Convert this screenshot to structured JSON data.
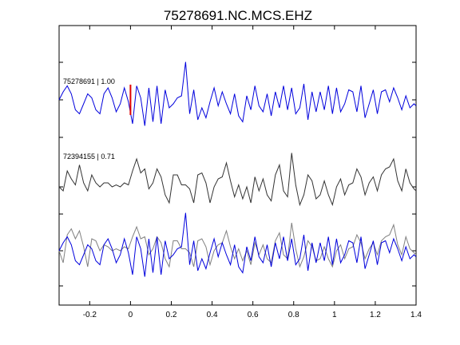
{
  "chart_data": {
    "type": "line",
    "title": "75278691.NC.MCS.EHZ",
    "xlabel": "",
    "ylabel": "",
    "xlim": [
      -0.35,
      1.4
    ],
    "xticks": [
      -0.2,
      0,
      0.2,
      0.4,
      0.6,
      0.8,
      1,
      1.2,
      1.4
    ],
    "xtick_labels": [
      "-0.2",
      "0",
      "0.2",
      "0.4",
      "0.6",
      "0.8",
      "1",
      "1.2",
      "1.4"
    ],
    "pick_marker": {
      "x": 0,
      "color": "#e00000"
    },
    "colors": {
      "primary": "#0000dd",
      "secondary": "#333333",
      "overlay": "#808080",
      "pick": "#e00000"
    },
    "traces": [
      {
        "label": "75278691 | 1.00",
        "color": "#0000dd",
        "x": [
          -0.35,
          -0.33,
          -0.31,
          -0.29,
          -0.27,
          -0.25,
          -0.23,
          -0.21,
          -0.19,
          -0.17,
          -0.15,
          -0.13,
          -0.11,
          -0.09,
          -0.07,
          -0.05,
          -0.03,
          -0.01,
          0.01,
          0.03,
          0.05,
          0.07,
          0.09,
          0.11,
          0.13,
          0.15,
          0.17,
          0.19,
          0.21,
          0.23,
          0.25,
          0.27,
          0.29,
          0.31,
          0.33,
          0.35,
          0.37,
          0.39,
          0.41,
          0.43,
          0.45,
          0.47,
          0.49,
          0.51,
          0.53,
          0.55,
          0.57,
          0.59,
          0.61,
          0.63,
          0.65,
          0.67,
          0.69,
          0.71,
          0.73,
          0.75,
          0.77,
          0.79,
          0.81,
          0.83,
          0.85,
          0.87,
          0.89,
          0.91,
          0.93,
          0.95,
          0.97,
          0.99,
          1.01,
          1.03,
          1.05,
          1.07,
          1.09,
          1.11,
          1.13,
          1.15,
          1.17,
          1.19,
          1.21,
          1.23,
          1.25,
          1.27,
          1.29,
          1.31,
          1.33,
          1.35,
          1.37,
          1.39,
          1.4
        ],
        "y": [
          0,
          0.2,
          0.35,
          0.15,
          -0.25,
          -0.35,
          -0.1,
          0.15,
          0.05,
          -0.25,
          -0.35,
          0.15,
          0.3,
          0.05,
          -0.3,
          -0.1,
          0.3,
          -0.05,
          -0.6,
          0.35,
          0.05,
          -0.65,
          0.3,
          -0.55,
          0.35,
          -0.6,
          0.25,
          -0.2,
          -0.1,
          0.05,
          0.1,
          0.95,
          -0.35,
          0.25,
          -0.5,
          -0.2,
          -0.45,
          -0.05,
          0.3,
          -0.15,
          0.2,
          -0.1,
          -0.35,
          0.15,
          -0.4,
          -0.55,
          0.1,
          -0.25,
          0.35,
          -0.15,
          -0.3,
          0.15,
          -0.4,
          0.2,
          -0.2,
          0.35,
          -0.25,
          0.3,
          -0.35,
          -0.2,
          0.4,
          -0.5,
          0.2,
          -0.3,
          0.2,
          -0.25,
          0.35,
          -0.35,
          0.3,
          -0.3,
          -0.1,
          0.25,
          0.2,
          -0.3,
          0.35,
          -0.45,
          -0.1,
          0.25,
          -0.35,
          0.2,
          0.25,
          -0.05,
          0.3,
          0.05,
          -0.25,
          0.1,
          -0.2,
          -0.1,
          -0.15
        ]
      },
      {
        "label": "72394155 | 0.71",
        "color": "#333333",
        "x": [
          -0.35,
          -0.33,
          -0.31,
          -0.29,
          -0.27,
          -0.25,
          -0.23,
          -0.21,
          -0.19,
          -0.17,
          -0.15,
          -0.13,
          -0.11,
          -0.09,
          -0.07,
          -0.05,
          -0.03,
          -0.01,
          0.01,
          0.03,
          0.05,
          0.07,
          0.09,
          0.11,
          0.13,
          0.15,
          0.17,
          0.19,
          0.21,
          0.23,
          0.25,
          0.27,
          0.29,
          0.31,
          0.33,
          0.35,
          0.37,
          0.39,
          0.41,
          0.43,
          0.45,
          0.47,
          0.49,
          0.51,
          0.53,
          0.55,
          0.57,
          0.59,
          0.61,
          0.63,
          0.65,
          0.67,
          0.69,
          0.71,
          0.73,
          0.75,
          0.77,
          0.79,
          0.81,
          0.83,
          0.85,
          0.87,
          0.89,
          0.91,
          0.93,
          0.95,
          0.97,
          0.99,
          1.01,
          1.03,
          1.05,
          1.07,
          1.09,
          1.11,
          1.13,
          1.15,
          1.17,
          1.19,
          1.21,
          1.23,
          1.25,
          1.27,
          1.29,
          1.31,
          1.33,
          1.35,
          1.37,
          1.39,
          1.4
        ],
        "y": [
          0,
          -0.1,
          0.4,
          0.2,
          0.05,
          0.55,
          0.1,
          -0.1,
          0.3,
          0.1,
          0.0,
          0.1,
          0.1,
          0.0,
          0.05,
          0.0,
          0.1,
          0.05,
          0.4,
          0.7,
          0.35,
          0.45,
          -0.05,
          0.1,
          0.45,
          0.25,
          -0.2,
          -0.4,
          0.3,
          0.3,
          0.05,
          0.05,
          -0.05,
          -0.4,
          0.3,
          0.35,
          0.1,
          -0.4,
          0.0,
          0.2,
          0.25,
          0.6,
          0.15,
          -0.25,
          0.05,
          -0.3,
          0.0,
          -0.4,
          0.25,
          -0.1,
          0.2,
          -0.2,
          -0.35,
          0.3,
          0.55,
          -0.1,
          -0.25,
          0.85,
          0.05,
          -0.45,
          -0.2,
          0.3,
          0.15,
          -0.3,
          -0.2,
          0.15,
          -0.2,
          -0.45,
          0.0,
          0.2,
          -0.2,
          0.05,
          0.1,
          0.45,
          0.25,
          -0.2,
          0.1,
          0.25,
          -0.1,
          0.3,
          0.45,
          0.5,
          0.7,
          0.15,
          -0.1,
          0.45,
          0.1,
          -0.05,
          -0.1
        ]
      },
      {
        "label": "",
        "color": "#808080",
        "x": [
          -0.35,
          -0.33,
          -0.31,
          -0.29,
          -0.27,
          -0.25,
          -0.23,
          -0.21,
          -0.19,
          -0.17,
          -0.15,
          -0.13,
          -0.11,
          -0.09,
          -0.07,
          -0.05,
          -0.03,
          -0.01,
          0.01,
          0.03,
          0.05,
          0.07,
          0.09,
          0.11,
          0.13,
          0.15,
          0.17,
          0.19,
          0.21,
          0.23,
          0.25,
          0.27,
          0.29,
          0.31,
          0.33,
          0.35,
          0.37,
          0.39,
          0.41,
          0.43,
          0.45,
          0.47,
          0.49,
          0.51,
          0.53,
          0.55,
          0.57,
          0.59,
          0.61,
          0.63,
          0.65,
          0.67,
          0.69,
          0.71,
          0.73,
          0.75,
          0.77,
          0.79,
          0.81,
          0.83,
          0.85,
          0.87,
          0.89,
          0.91,
          0.93,
          0.95,
          0.97,
          0.99,
          1.01,
          1.03,
          1.05,
          1.07,
          1.09,
          1.11,
          1.13,
          1.15,
          1.17,
          1.19,
          1.21,
          1.23,
          1.25,
          1.27,
          1.29,
          1.31,
          1.33,
          1.35,
          1.37,
          1.39,
          1.4
        ],
        "y": [
          0,
          -0.3,
          0.4,
          0.55,
          0.3,
          0.5,
          0.1,
          -0.4,
          0.3,
          0.25,
          0.0,
          0.15,
          0.1,
          0.0,
          0.05,
          0.0,
          0.1,
          0.05,
          0.35,
          0.6,
          0.3,
          0.35,
          -0.1,
          0.05,
          0.35,
          0.2,
          -0.2,
          -0.4,
          0.25,
          0.25,
          0.05,
          0.05,
          -0.05,
          -0.4,
          0.25,
          0.3,
          0.1,
          -0.35,
          0.0,
          0.15,
          0.2,
          0.5,
          0.1,
          -0.2,
          0.05,
          -0.25,
          0.0,
          -0.35,
          0.2,
          -0.1,
          0.15,
          -0.2,
          -0.3,
          0.25,
          0.45,
          -0.1,
          -0.2,
          0.7,
          0.05,
          -0.4,
          -0.15,
          0.25,
          0.1,
          -0.25,
          -0.2,
          0.1,
          -0.2,
          -0.4,
          0.0,
          0.15,
          -0.2,
          0.05,
          0.1,
          0.4,
          0.2,
          -0.2,
          0.05,
          0.2,
          -0.1,
          0.25,
          0.35,
          0.4,
          0.65,
          0.15,
          -0.1,
          0.35,
          0.05,
          -0.05,
          -0.1
        ]
      }
    ]
  }
}
